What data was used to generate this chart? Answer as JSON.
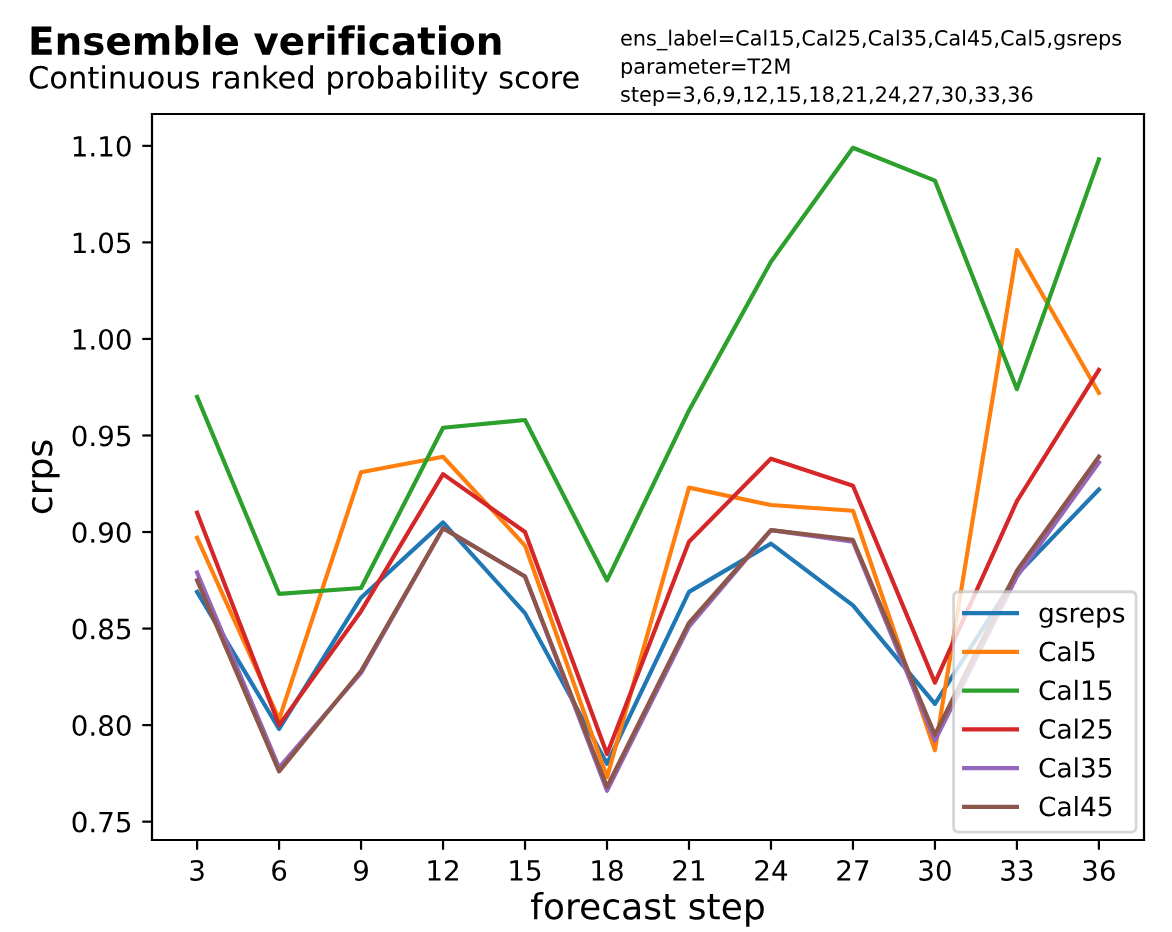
{
  "chart_data": {
    "type": "line",
    "title": "Ensemble verification",
    "subtitle": "Continuous ranked probability score",
    "annotations": [
      "ens_label=Cal15,Cal25,Cal35,Cal45,Cal5,gsreps",
      "parameter=T2M",
      "step=3,6,9,12,15,18,21,24,27,30,33,36"
    ],
    "xlabel": "forecast step",
    "ylabel": "crps",
    "x": [
      3,
      6,
      9,
      12,
      15,
      18,
      21,
      24,
      27,
      30,
      33,
      36
    ],
    "series": [
      {
        "name": "gsreps",
        "color": "#1f77b4",
        "values": [
          0.869,
          0.798,
          0.866,
          0.905,
          0.858,
          0.78,
          0.869,
          0.894,
          0.862,
          0.811,
          0.878,
          0.922
        ]
      },
      {
        "name": "Cal5",
        "color": "#ff7f0e",
        "values": [
          0.897,
          0.803,
          0.931,
          0.939,
          0.893,
          0.773,
          0.923,
          0.914,
          0.911,
          0.787,
          1.046,
          0.972
        ]
      },
      {
        "name": "Cal15",
        "color": "#2ca02c",
        "values": [
          0.97,
          0.868,
          0.871,
          0.954,
          0.958,
          0.875,
          0.963,
          1.04,
          1.099,
          1.082,
          0.974,
          1.093
        ]
      },
      {
        "name": "Cal25",
        "color": "#d62728",
        "values": [
          0.91,
          0.8,
          0.859,
          0.93,
          0.9,
          0.785,
          0.895,
          0.938,
          0.924,
          0.822,
          0.916,
          0.984
        ]
      },
      {
        "name": "Cal35",
        "color": "#9467bd",
        "values": [
          0.879,
          0.778,
          0.827,
          0.902,
          0.877,
          0.766,
          0.851,
          0.901,
          0.895,
          0.792,
          0.877,
          0.936
        ]
      },
      {
        "name": "Cal45",
        "color": "#8c564b",
        "values": [
          0.875,
          0.776,
          0.828,
          0.902,
          0.877,
          0.768,
          0.853,
          0.901,
          0.896,
          0.795,
          0.88,
          0.939
        ]
      }
    ],
    "xlim": [
      1.35,
      37.65
    ],
    "xticks": [
      3,
      6,
      9,
      12,
      15,
      18,
      21,
      24,
      27,
      30,
      33,
      36
    ],
    "ylim": [
      0.7405,
      1.1165
    ],
    "yticks": [
      0.75,
      {
        "value": 0.8,
        "label": "0.80"
      },
      0.85,
      {
        "value": 0.9,
        "label": "0.90"
      },
      0.95,
      {
        "value": 1.0,
        "label": "1.00"
      },
      1.05,
      {
        "value": 1.1,
        "label": "1.10"
      }
    ],
    "legend": "bottom right",
    "grid": false
  }
}
